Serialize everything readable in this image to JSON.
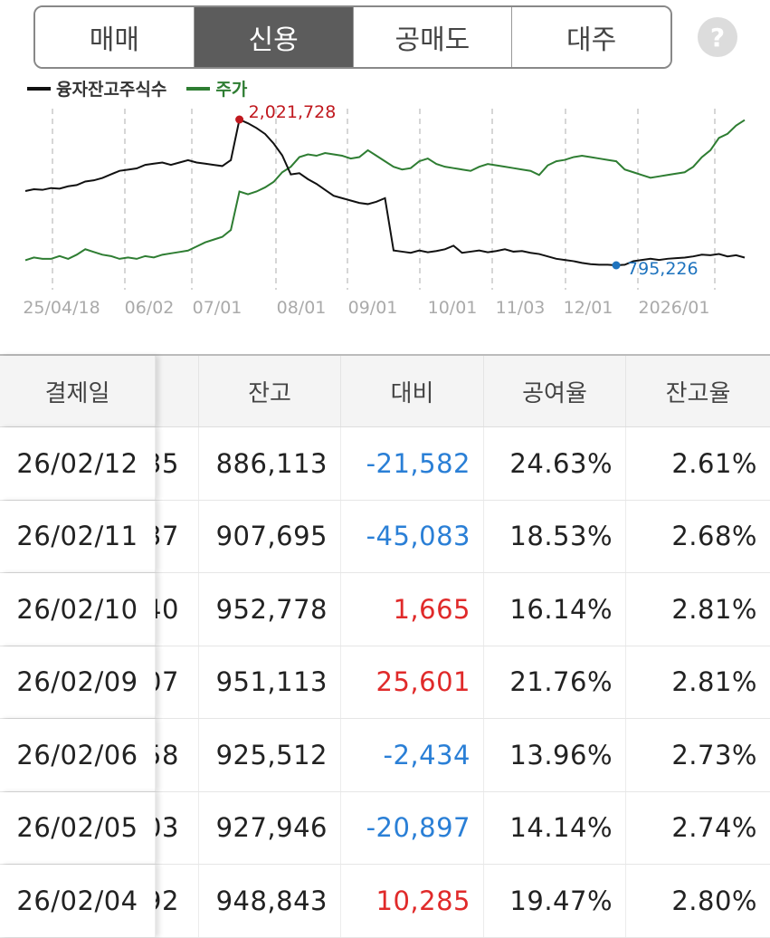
{
  "tabs": [
    {
      "label": "매매",
      "active": false
    },
    {
      "label": "신용",
      "active": true
    },
    {
      "label": "공매도",
      "active": false
    },
    {
      "label": "대주",
      "active": false
    }
  ],
  "help_icon": "question-mark",
  "colors": {
    "balance_line": "#111111",
    "price_line": "#2e7d32",
    "max_label": "#c0181e",
    "min_label": "#1e73be",
    "negative": "#2a7fd6",
    "positive": "#e02a2a"
  },
  "chart_data": {
    "type": "line",
    "legend": [
      "융자잔고주식수",
      "주가"
    ],
    "x_ticks": [
      "25/04/18",
      "06/02",
      "07/01",
      "08/01",
      "09/01",
      "10/01",
      "11/03",
      "12/01",
      "2026/01"
    ],
    "max_annotation": "2,021,728",
    "min_annotation": "795,226",
    "series": [
      {
        "name": "융자잔고주식수",
        "values": [
          1420000,
          1435000,
          1430000,
          1445000,
          1440000,
          1460000,
          1470000,
          1500000,
          1510000,
          1530000,
          1560000,
          1590000,
          1600000,
          1610000,
          1640000,
          1650000,
          1660000,
          1640000,
          1660000,
          1680000,
          1660000,
          1650000,
          1640000,
          1630000,
          1680000,
          2021728,
          1990000,
          1950000,
          1900000,
          1820000,
          1720000,
          1560000,
          1570000,
          1520000,
          1480000,
          1430000,
          1380000,
          1360000,
          1340000,
          1320000,
          1310000,
          1330000,
          1360000,
          920000,
          910000,
          900000,
          920000,
          905000,
          915000,
          930000,
          960000,
          900000,
          910000,
          920000,
          905000,
          915000,
          930000,
          910000,
          915000,
          900000,
          890000,
          870000,
          850000,
          840000,
          830000,
          815000,
          805000,
          800000,
          800000,
          795226,
          800000,
          830000,
          840000,
          850000,
          840000,
          850000,
          855000,
          860000,
          870000,
          885000,
          880000,
          890000,
          870000,
          880000,
          860000
        ]
      },
      {
        "name": "주가",
        "values": [
          20,
          22,
          21,
          21,
          23,
          21,
          24,
          28,
          26,
          24,
          23,
          21,
          22,
          21,
          23,
          22,
          24,
          25,
          26,
          27,
          30,
          33,
          35,
          37,
          42,
          70,
          68,
          70,
          73,
          77,
          84,
          88,
          95,
          97,
          96,
          98,
          97,
          96,
          94,
          95,
          100,
          96,
          92,
          88,
          86,
          87,
          92,
          94,
          90,
          88,
          87,
          86,
          85,
          88,
          90,
          89,
          88,
          87,
          86,
          85,
          82,
          89,
          92,
          93,
          95,
          96,
          95,
          94,
          93,
          92,
          86,
          84,
          82,
          80,
          81,
          82,
          83,
          84,
          88,
          95,
          100,
          109,
          112,
          118,
          122
        ]
      }
    ]
  },
  "table": {
    "headers": [
      "결제일",
      "",
      "잔고",
      "대비",
      "공여율",
      "잔고율"
    ],
    "rows": [
      {
        "date": "26/02/12",
        "partial": "35",
        "balance": "886,113",
        "change": "-21,582",
        "sign": "neg",
        "rate": "24.63%",
        "ratio": "2.61%"
      },
      {
        "date": "26/02/11",
        "partial": "37",
        "balance": "907,695",
        "change": "-45,083",
        "sign": "neg",
        "rate": "18.53%",
        "ratio": "2.68%"
      },
      {
        "date": "26/02/10",
        "partial": "40",
        "balance": "952,778",
        "change": "1,665",
        "sign": "pos",
        "rate": "16.14%",
        "ratio": "2.81%"
      },
      {
        "date": "26/02/09",
        "partial": "07",
        "balance": "951,113",
        "change": "25,601",
        "sign": "pos",
        "rate": "21.76%",
        "ratio": "2.81%"
      },
      {
        "date": "26/02/06",
        "partial": "58",
        "balance": "925,512",
        "change": "-2,434",
        "sign": "neg",
        "rate": "13.96%",
        "ratio": "2.73%"
      },
      {
        "date": "26/02/05",
        "partial": "03",
        "balance": "927,946",
        "change": "-20,897",
        "sign": "neg",
        "rate": "14.14%",
        "ratio": "2.74%"
      },
      {
        "date": "26/02/04",
        "partial": "92",
        "balance": "948,843",
        "change": "10,285",
        "sign": "pos",
        "rate": "19.47%",
        "ratio": "2.80%"
      }
    ]
  }
}
